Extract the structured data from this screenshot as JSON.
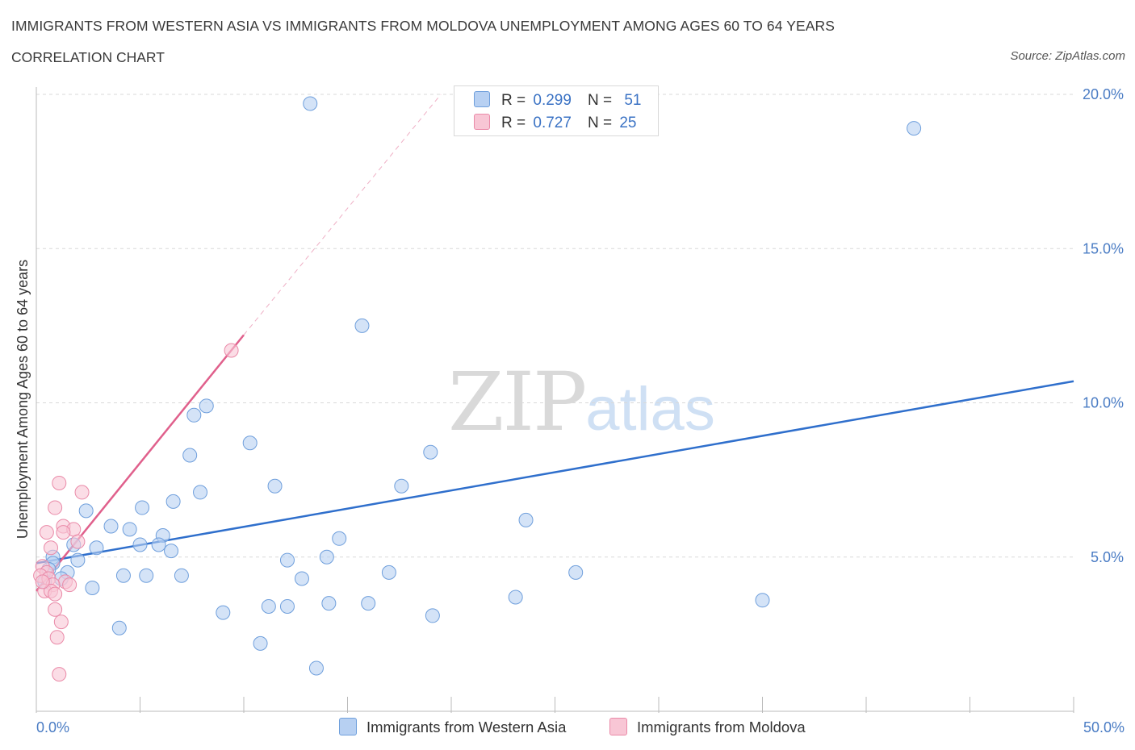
{
  "header": {
    "title": "IMMIGRANTS FROM WESTERN ASIA VS IMMIGRANTS FROM MOLDOVA UNEMPLOYMENT AMONG AGES 60 TO 64 YEARS",
    "subtitle": "CORRELATION CHART",
    "source": "Source: ZipAtlas.com"
  },
  "watermark": {
    "zip": "ZIP",
    "atlas": "atlas"
  },
  "legend": {
    "series1": {
      "r_label": "R =",
      "r_value": "0.299",
      "n_label": "N =",
      "n_value": "51"
    },
    "series2": {
      "r_label": "R =",
      "r_value": "0.727",
      "n_label": "N =",
      "n_value": "25"
    }
  },
  "colors": {
    "blue_fill": "#b7d0f2",
    "blue_stroke": "#6f9fdc",
    "blue_line": "#2f6fcc",
    "pink_fill": "#f8c6d5",
    "pink_stroke": "#ea8aa8",
    "pink_line": "#e0608c",
    "grid": "#d9d9d9"
  },
  "chart_data": {
    "type": "scatter",
    "title": "IMMIGRANTS FROM WESTERN ASIA VS IMMIGRANTS FROM MOLDOVA UNEMPLOYMENT AMONG AGES 60 TO 64 YEARS",
    "xlabel": "",
    "ylabel": "Unemployment Among Ages 60 to 64 years",
    "xlim": [
      0,
      50
    ],
    "ylim": [
      0,
      20.5
    ],
    "x_tick_labels": [
      "0.0%",
      "50.0%"
    ],
    "y_ticks": [
      5,
      10,
      15,
      20
    ],
    "y_tick_labels": [
      "5.0%",
      "10.0%",
      "15.0%",
      "20.0%"
    ],
    "grid": true,
    "series": [
      {
        "name": "Immigrants from Western Asia",
        "color": "#b7d0f2",
        "points": [
          [
            13.2,
            19.7
          ],
          [
            42.3,
            18.9
          ],
          [
            15.7,
            12.5
          ],
          [
            8.2,
            9.9
          ],
          [
            7.6,
            9.6
          ],
          [
            10.3,
            8.7
          ],
          [
            19.0,
            8.4
          ],
          [
            7.4,
            8.3
          ],
          [
            11.5,
            7.3
          ],
          [
            17.6,
            7.3
          ],
          [
            7.9,
            7.1
          ],
          [
            6.6,
            6.8
          ],
          [
            5.1,
            6.6
          ],
          [
            2.4,
            6.5
          ],
          [
            23.6,
            6.2
          ],
          [
            3.6,
            6.0
          ],
          [
            4.5,
            5.9
          ],
          [
            6.1,
            5.7
          ],
          [
            14.6,
            5.6
          ],
          [
            5.0,
            5.4
          ],
          [
            5.9,
            5.4
          ],
          [
            1.8,
            5.4
          ],
          [
            2.9,
            5.3
          ],
          [
            6.5,
            5.2
          ],
          [
            0.8,
            5.0
          ],
          [
            14.0,
            5.0
          ],
          [
            12.1,
            4.9
          ],
          [
            2.0,
            4.9
          ],
          [
            0.8,
            4.8
          ],
          [
            0.6,
            4.6
          ],
          [
            17.0,
            4.5
          ],
          [
            1.5,
            4.5
          ],
          [
            4.2,
            4.4
          ],
          [
            5.3,
            4.4
          ],
          [
            7.0,
            4.4
          ],
          [
            26.0,
            4.5
          ],
          [
            12.8,
            4.3
          ],
          [
            0.4,
            4.2
          ],
          [
            2.7,
            4.0
          ],
          [
            23.1,
            3.7
          ],
          [
            35.0,
            3.6
          ],
          [
            14.1,
            3.5
          ],
          [
            16.0,
            3.5
          ],
          [
            11.2,
            3.4
          ],
          [
            12.1,
            3.4
          ],
          [
            9.0,
            3.2
          ],
          [
            19.1,
            3.1
          ],
          [
            4.0,
            2.7
          ],
          [
            10.8,
            2.2
          ],
          [
            13.5,
            1.4
          ],
          [
            1.2,
            4.3
          ]
        ]
      },
      {
        "name": "Immigrants from Moldova",
        "color": "#f8c6d5",
        "points": [
          [
            9.4,
            11.7
          ],
          [
            1.1,
            7.4
          ],
          [
            2.2,
            7.1
          ],
          [
            0.9,
            6.6
          ],
          [
            1.3,
            6.0
          ],
          [
            1.8,
            5.9
          ],
          [
            0.5,
            5.8
          ],
          [
            1.3,
            5.8
          ],
          [
            2.0,
            5.5
          ],
          [
            0.7,
            5.3
          ],
          [
            0.3,
            4.7
          ],
          [
            0.5,
            4.5
          ],
          [
            0.2,
            4.4
          ],
          [
            0.6,
            4.3
          ],
          [
            1.4,
            4.2
          ],
          [
            1.6,
            4.1
          ],
          [
            0.8,
            4.1
          ],
          [
            0.4,
            3.9
          ],
          [
            0.7,
            3.9
          ],
          [
            0.9,
            3.8
          ],
          [
            0.9,
            3.3
          ],
          [
            1.2,
            2.9
          ],
          [
            1.0,
            2.4
          ],
          [
            1.1,
            1.2
          ],
          [
            0.3,
            4.2
          ]
        ]
      }
    ],
    "trend_lines": [
      {
        "series": "Immigrants from Western Asia",
        "from": [
          0,
          4.8
        ],
        "to": [
          50,
          10.7
        ],
        "style": "solid"
      },
      {
        "series": "Immigrants from Moldova",
        "from": [
          0,
          3.9
        ],
        "to": [
          10,
          12.2
        ],
        "style": "solid"
      },
      {
        "series": "Immigrants from Moldova",
        "from": [
          10,
          12.2
        ],
        "to": [
          19.5,
          20.0
        ],
        "style": "dashed"
      }
    ]
  },
  "bottom_legend": [
    {
      "label": "Immigrants from Western Asia"
    },
    {
      "label": "Immigrants from Moldova"
    }
  ]
}
